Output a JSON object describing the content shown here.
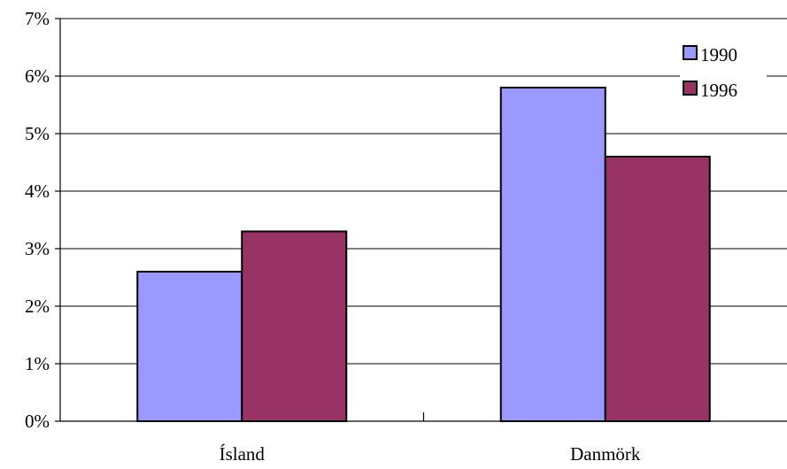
{
  "chart_data": {
    "type": "bar",
    "categories": [
      "Ísland",
      "Danmörk"
    ],
    "series": [
      {
        "name": "1990",
        "color": "#9999ff",
        "values": [
          2.6,
          5.8
        ]
      },
      {
        "name": "1996",
        "color": "#993366",
        "values": [
          3.3,
          4.6
        ]
      }
    ],
    "ylim": [
      0,
      7
    ],
    "yticks": [
      0,
      1,
      2,
      3,
      4,
      5,
      6,
      7
    ],
    "ytick_suffix": "%",
    "grid": true,
    "legend": "top-right"
  }
}
